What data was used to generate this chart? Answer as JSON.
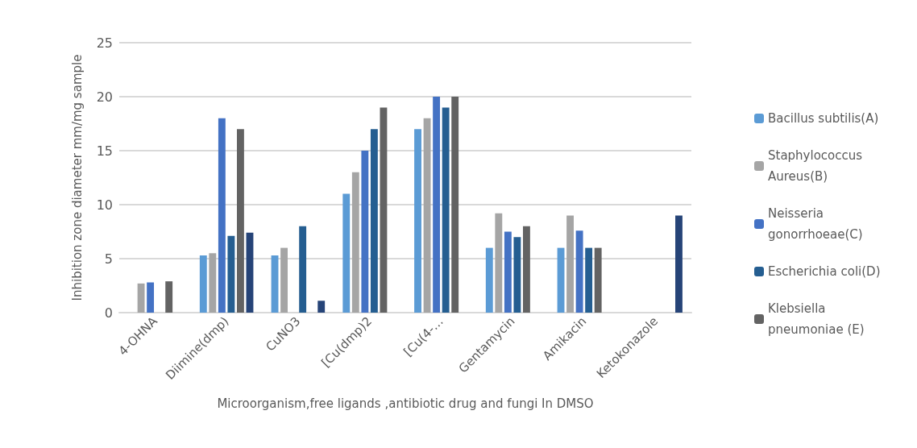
{
  "chart_data": {
    "type": "bar",
    "xlabel": "Microorganism,free ligands ,antibiotic drug and fungi In DMSO",
    "ylabel": "Inhibition zone diameter mm/mg sample",
    "categories": [
      "4-OHNA",
      "Diimine(dmp)",
      "CuNO3",
      "[Cu(dmp)2",
      "[Cu(4-…",
      "Gentamycin",
      "Amikacin",
      "Ketokonazole"
    ],
    "series": [
      {
        "name": "Bacillus subtilis(A)",
        "color": "#5b9bd5",
        "values": [
          null,
          5.3,
          5.3,
          11,
          17,
          6,
          6,
          null
        ]
      },
      {
        "name": "Staphylococcus Aureus(B)",
        "color": "#a5a5a5",
        "values": [
          2.7,
          5.5,
          6,
          13,
          18,
          9.2,
          9,
          null
        ]
      },
      {
        "name": "Neisseria gonorrhoeae(C)",
        "color": "#4472c4",
        "values": [
          2.8,
          18,
          null,
          15,
          20,
          7.5,
          7.6,
          null
        ]
      },
      {
        "name": "Escherichia coli(D)",
        "color": "#255e91",
        "values": [
          null,
          7.1,
          8,
          17,
          19,
          7,
          6,
          null
        ]
      },
      {
        "name": "Klebsiella pneumoniae (E)",
        "color": "#636363",
        "values": [
          2.9,
          17,
          null,
          19,
          20,
          8,
          6,
          null
        ]
      },
      {
        "color": "#264478",
        "values": [
          null,
          7.4,
          1.1,
          null,
          null,
          null,
          null,
          9
        ]
      }
    ],
    "ylim": [
      0,
      25
    ],
    "yticks": [
      0,
      5,
      10,
      15,
      20,
      25
    ],
    "grid": "y",
    "legend": "right"
  }
}
